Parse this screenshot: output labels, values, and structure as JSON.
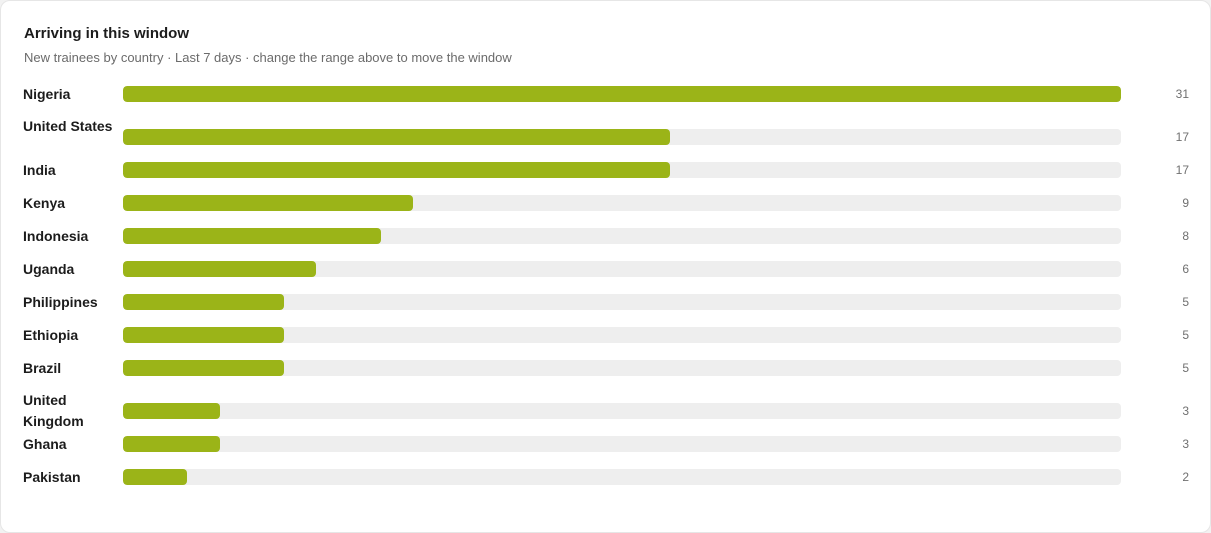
{
  "card": {
    "title": "Arriving in this window",
    "subtitle": "New trainees by country · Last 7 days · change the range above to move the window"
  },
  "colors": {
    "bar": "#9bb418",
    "track": "#eeeeee"
  },
  "chart_data": {
    "type": "bar",
    "orientation": "horizontal",
    "categories": [
      "Nigeria",
      "United States",
      "India",
      "Kenya",
      "Indonesia",
      "Uganda",
      "Philippines",
      "Ethiopia",
      "Brazil",
      "United Kingdom",
      "Ghana",
      "Pakistan"
    ],
    "values": [
      31,
      17,
      17,
      9,
      8,
      6,
      5,
      5,
      5,
      3,
      3,
      2
    ],
    "max": 31,
    "title": "Arriving in this window",
    "xlabel": "",
    "ylabel": "",
    "grid": false,
    "legend": "none"
  }
}
